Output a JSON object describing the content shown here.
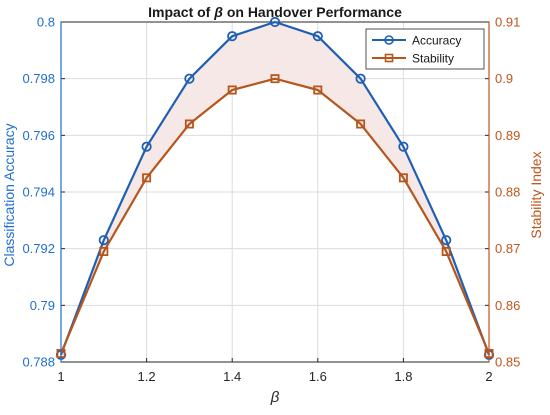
{
  "chart_data": {
    "type": "line",
    "title_prefix": "Impact of",
    "title_symbol": "β",
    "title_suffix": "on Handover Performance",
    "xlabel": "β",
    "ylabel_left": "Classification Accuracy",
    "ylabel_right": "Stability Index",
    "x": [
      1,
      1.1,
      1.2,
      1.3,
      1.4,
      1.5,
      1.6,
      1.7,
      1.8,
      1.9,
      2
    ],
    "xlim": [
      1,
      2
    ],
    "ylim_left": [
      0.788,
      0.8
    ],
    "ylim_right": [
      0.85,
      0.91
    ],
    "x_ticks": [
      "1",
      "1.2",
      "1.4",
      "1.6",
      "1.8",
      "2"
    ],
    "y_ticks_left": [
      "0.788",
      "0.79",
      "0.792",
      "0.794",
      "0.796",
      "0.798",
      "0.8"
    ],
    "y_ticks_right": [
      "0.85",
      "0.86",
      "0.87",
      "0.88",
      "0.89",
      "0.9",
      "0.91"
    ],
    "grid": true,
    "legend_position": "top-right",
    "series": [
      {
        "name": "Accuracy",
        "axis": "left",
        "color": "#1f5fb4",
        "marker": "circle",
        "values": [
          0.78825,
          0.7923,
          0.7956,
          0.798,
          0.7995,
          0.8,
          0.7995,
          0.798,
          0.7956,
          0.7923,
          0.78825
        ]
      },
      {
        "name": "Stability",
        "axis": "right",
        "color": "#b5561c",
        "marker": "square",
        "values": [
          0.8515,
          0.8695,
          0.8825,
          0.892,
          0.898,
          0.9,
          0.898,
          0.892,
          0.8825,
          0.8695,
          0.8515
        ]
      }
    ],
    "colors": {
      "left_axis": "#1f6fd0",
      "right_axis": "#c0561c",
      "grid": "#dcdcdc",
      "fill": "#f7e8e8"
    }
  }
}
